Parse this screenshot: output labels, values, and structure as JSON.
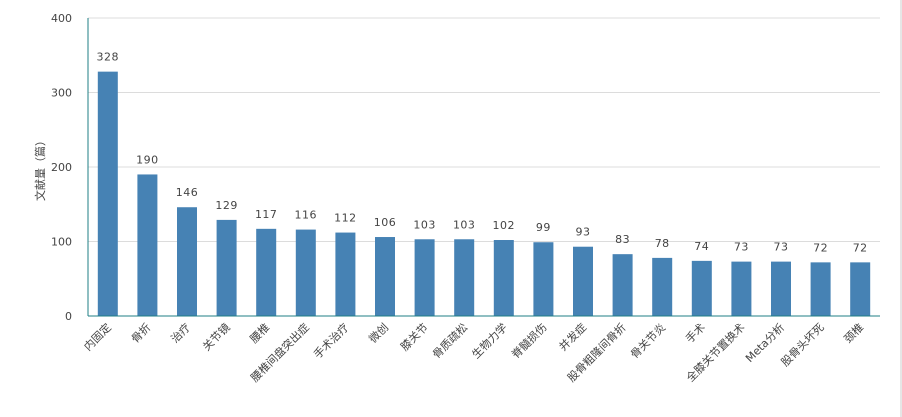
{
  "chart_data": {
    "type": "bar",
    "title": "",
    "xlabel": "",
    "ylabel": "文献量（篇）",
    "ylim": [
      0,
      400
    ],
    "yticks": [
      0,
      100,
      200,
      300,
      400
    ],
    "grid": true,
    "bar_color": "#4682b4",
    "grid_color": "#dcdcdc",
    "axis_color": "#1f7f86",
    "categories": [
      "内固定",
      "骨折",
      "治疗",
      "关节镜",
      "腰椎",
      "腰椎间盘突出症",
      "手术治疗",
      "微创",
      "膝关节",
      "骨质疏松",
      "生物力学",
      "脊髓损伤",
      "并发症",
      "股骨粗隆间骨折",
      "骨关节炎",
      "手术",
      "全膝关节置换术",
      "Meta分析",
      "股骨头坏死",
      "颈椎"
    ],
    "values": [
      328,
      190,
      146,
      129,
      117,
      116,
      112,
      106,
      103,
      103,
      102,
      99,
      93,
      83,
      78,
      74,
      73,
      73,
      72,
      72
    ]
  }
}
